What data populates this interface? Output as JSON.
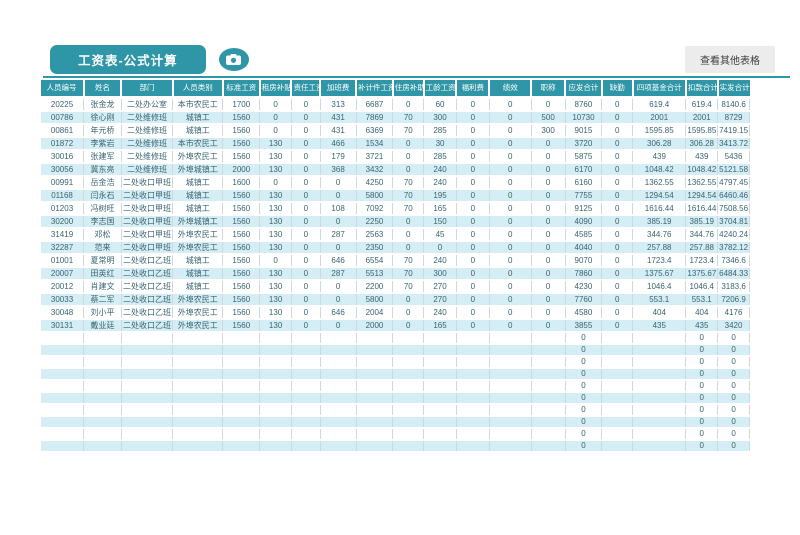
{
  "header": {
    "title": "工资表-公式计算",
    "action_button": "查看其他表格"
  },
  "colors": {
    "teal": "#2E96A6",
    "stripe": "#D5EDF4",
    "cell_text": "#3A6472",
    "button_bg": "#ECECEC"
  },
  "table": {
    "columns": [
      "人员编号",
      "姓名",
      "部门",
      "人员类别",
      "标准工资",
      "租房补贴",
      "责任工资",
      "加班费",
      "补计件工资",
      "住房补助",
      "工龄工资",
      "福利费",
      "绩效",
      "职称",
      "应发合计",
      "缺勤",
      "四项基金合计",
      "扣款合计",
      "实发合计"
    ],
    "rows": [
      [
        "20225",
        "张金龙",
        "二处办公室",
        "本市农民工",
        "1700",
        "0",
        "0",
        "313",
        "6687",
        "0",
        "60",
        "0",
        "0",
        "0",
        "8760",
        "0",
        "619.4",
        "619.4",
        "8140.6"
      ],
      [
        "00786",
        "徐心刚",
        "二处维修班",
        "城镇工",
        "1560",
        "0",
        "0",
        "431",
        "7869",
        "70",
        "300",
        "0",
        "0",
        "500",
        "10730",
        "0",
        "2001",
        "2001",
        "8729"
      ],
      [
        "00861",
        "年元桥",
        "二处维修班",
        "城镇工",
        "1560",
        "0",
        "0",
        "431",
        "6369",
        "70",
        "285",
        "0",
        "0",
        "300",
        "9015",
        "0",
        "1595.85",
        "1595.85",
        "7419.15"
      ],
      [
        "01872",
        "李紫岩",
        "二处维修班",
        "本市农民工",
        "1560",
        "130",
        "0",
        "466",
        "1534",
        "0",
        "30",
        "0",
        "0",
        "0",
        "3720",
        "0",
        "306.28",
        "306.28",
        "3413.72"
      ],
      [
        "30016",
        "张建军",
        "二处维修班",
        "外埠农民工",
        "1560",
        "130",
        "0",
        "179",
        "3721",
        "0",
        "285",
        "0",
        "0",
        "0",
        "5875",
        "0",
        "439",
        "439",
        "5436"
      ],
      [
        "30056",
        "冀东亮",
        "二处维修班",
        "外埠城镇工",
        "2000",
        "130",
        "0",
        "368",
        "3432",
        "0",
        "240",
        "0",
        "0",
        "0",
        "6170",
        "0",
        "1048.42",
        "1048.42",
        "5121.58"
      ],
      [
        "00991",
        "岳金浩",
        "二处收口甲班",
        "城镇工",
        "1600",
        "0",
        "0",
        "0",
        "4250",
        "70",
        "240",
        "0",
        "0",
        "0",
        "6160",
        "0",
        "1362.55",
        "1362.55",
        "4797.45"
      ],
      [
        "01168",
        "闫永石",
        "二处收口甲班",
        "城镇工",
        "1560",
        "130",
        "0",
        "0",
        "5800",
        "70",
        "195",
        "0",
        "0",
        "0",
        "7755",
        "0",
        "1294.54",
        "1294.54",
        "6460.46"
      ],
      [
        "01203",
        "冯树旺",
        "二处收口甲班",
        "城镇工",
        "1560",
        "130",
        "0",
        "108",
        "7092",
        "70",
        "165",
        "0",
        "0",
        "0",
        "9125",
        "0",
        "1616.44",
        "1616.44",
        "7508.56"
      ],
      [
        "30200",
        "李志国",
        "二处收口甲班",
        "外埠城镇工",
        "1560",
        "130",
        "0",
        "0",
        "2250",
        "0",
        "150",
        "0",
        "0",
        "0",
        "4090",
        "0",
        "385.19",
        "385.19",
        "3704.81"
      ],
      [
        "31419",
        "邓松",
        "二处收口甲班",
        "外埠农民工",
        "1560",
        "130",
        "0",
        "287",
        "2563",
        "0",
        "45",
        "0",
        "0",
        "0",
        "4585",
        "0",
        "344.76",
        "344.76",
        "4240.24"
      ],
      [
        "32287",
        "范来",
        "二处收口甲班",
        "外埠农民工",
        "1560",
        "130",
        "0",
        "0",
        "2350",
        "0",
        "0",
        "0",
        "0",
        "0",
        "4040",
        "0",
        "257.88",
        "257.88",
        "3782.12"
      ],
      [
        "01001",
        "夏常明",
        "二处收口乙班",
        "城镇工",
        "1560",
        "0",
        "0",
        "646",
        "6554",
        "70",
        "240",
        "0",
        "0",
        "0",
        "9070",
        "0",
        "1723.4",
        "1723.4",
        "7346.6"
      ],
      [
        "20007",
        "田英红",
        "二处收口乙班",
        "城镇工",
        "1560",
        "130",
        "0",
        "287",
        "5513",
        "70",
        "300",
        "0",
        "0",
        "0",
        "7860",
        "0",
        "1375.67",
        "1375.67",
        "6484.33"
      ],
      [
        "20012",
        "肖建文",
        "二处收口乙班",
        "城镇工",
        "1560",
        "130",
        "0",
        "0",
        "2200",
        "70",
        "270",
        "0",
        "0",
        "0",
        "4230",
        "0",
        "1046.4",
        "1046.4",
        "3183.6"
      ],
      [
        "30033",
        "蔡二军",
        "二处收口乙班",
        "外埠农民工",
        "1560",
        "130",
        "0",
        "0",
        "5800",
        "0",
        "270",
        "0",
        "0",
        "0",
        "7760",
        "0",
        "553.1",
        "553.1",
        "7206.9"
      ],
      [
        "30048",
        "刘小平",
        "二处收口乙班",
        "外埠农民工",
        "1560",
        "130",
        "0",
        "646",
        "2004",
        "0",
        "240",
        "0",
        "0",
        "0",
        "4580",
        "0",
        "404",
        "404",
        "4176"
      ],
      [
        "30131",
        "戴业廷",
        "二处收口乙班",
        "外埠农民工",
        "1560",
        "130",
        "0",
        "0",
        "2000",
        "0",
        "165",
        "0",
        "0",
        "0",
        "3855",
        "0",
        "435",
        "435",
        "3420"
      ]
    ],
    "empty_row": [
      "",
      "",
      "",
      "",
      "",
      "",
      "",
      "",
      "",
      "",
      "",
      "",
      "",
      "",
      "0",
      "",
      "",
      "0",
      "0"
    ],
    "empty_row_count": 10
  }
}
